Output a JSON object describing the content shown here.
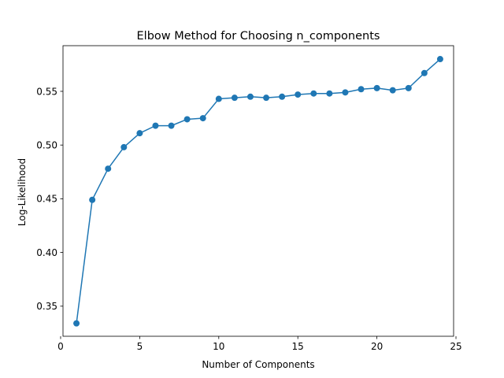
{
  "chart_data": {
    "type": "line",
    "title": "Elbow Method for Choosing n_components",
    "xlabel": "Number of Components",
    "ylabel": "Log-Likelihood",
    "xlim": [
      0.15,
      24.85
    ],
    "ylim": [
      0.322,
      0.5925
    ],
    "xticks": [
      0,
      5,
      10,
      15,
      20,
      25
    ],
    "xtick_labels": [
      "0",
      "5",
      "10",
      "15",
      "20",
      "25"
    ],
    "yticks": [
      0.35,
      0.4,
      0.45,
      0.5,
      0.55
    ],
    "ytick_labels": [
      "0.35",
      "0.40",
      "0.45",
      "0.50",
      "0.55"
    ],
    "grid": false,
    "legend": "none",
    "color": "#1f77b4",
    "marker": "circle",
    "series": [
      {
        "x": [
          1,
          2,
          3,
          4,
          5,
          6,
          7,
          8,
          9,
          10,
          11,
          12,
          13,
          14,
          15,
          16,
          17,
          18,
          19,
          20,
          21,
          22,
          23,
          24
        ],
        "values": [
          0.334,
          0.449,
          0.478,
          0.498,
          0.511,
          0.518,
          0.518,
          0.524,
          0.525,
          0.543,
          0.544,
          0.545,
          0.544,
          0.545,
          0.547,
          0.548,
          0.548,
          0.549,
          0.552,
          0.553,
          0.551,
          0.553,
          0.567,
          0.58
        ]
      }
    ]
  }
}
